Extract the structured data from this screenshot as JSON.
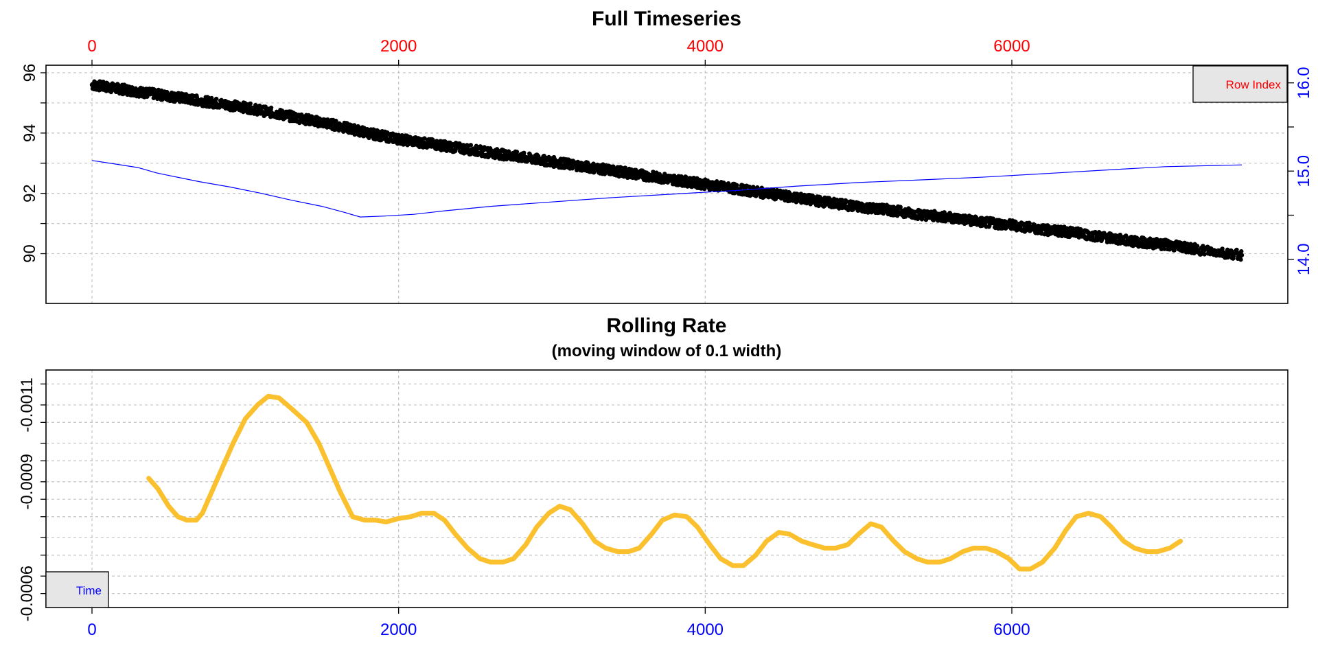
{
  "chart_data": [
    {
      "type": "scatter",
      "title": "Full Timeseries",
      "x_top_axis": {
        "ticks": [
          0,
          2000,
          4000,
          6000
        ],
        "color": "#ff0000",
        "range": [
          -300,
          7800
        ]
      },
      "y_left_axis": {
        "ticks": [
          90,
          92,
          94,
          96
        ],
        "range": [
          88.35,
          96.25
        ],
        "grid": [
          90,
          91,
          92,
          93,
          94,
          95,
          96
        ]
      },
      "y_right_axis": {
        "ticks": [
          "14.0",
          "15.0",
          "16.0"
        ],
        "minor_ticks": [
          14.5,
          15.5
        ],
        "color": "#0000ff",
        "range": [
          13.5,
          16.2
        ]
      },
      "legend": {
        "label": "Row Index",
        "color": "#ff0000",
        "position": "top-right"
      },
      "series": [
        {
          "kind": "points",
          "color": "#000000",
          "axis": "left",
          "x": [
            0,
            200,
            400,
            600,
            800,
            1000,
            1200,
            1400,
            1600,
            1800,
            2000,
            2200,
            2400,
            2600,
            2800,
            3000,
            3200,
            3400,
            3600,
            3800,
            4000,
            4200,
            4400,
            4600,
            4800,
            5000,
            5200,
            5400,
            5600,
            5800,
            6000,
            6200,
            6400,
            6600,
            6800,
            7000,
            7200,
            7500
          ],
          "y": [
            95.6,
            95.45,
            95.3,
            95.15,
            95.0,
            94.85,
            94.65,
            94.45,
            94.25,
            94.0,
            93.8,
            93.65,
            93.5,
            93.35,
            93.2,
            93.05,
            92.9,
            92.75,
            92.6,
            92.45,
            92.3,
            92.15,
            92.0,
            91.85,
            91.7,
            91.55,
            91.45,
            91.3,
            91.2,
            91.05,
            90.95,
            90.8,
            90.7,
            90.55,
            90.4,
            90.3,
            90.15,
            89.95
          ]
        },
        {
          "kind": "line",
          "color": "#0000ff",
          "axis": "right",
          "x": [
            0,
            150,
            300,
            420,
            500,
            700,
            900,
            1100,
            1300,
            1500,
            1650,
            1750,
            1900,
            2100,
            2300,
            2600,
            3000,
            3400,
            3800,
            4200,
            4600,
            5000,
            5400,
            5800,
            6200,
            6600,
            7000,
            7500
          ],
          "y": [
            15.12,
            15.08,
            15.04,
            14.98,
            14.95,
            14.88,
            14.82,
            14.75,
            14.67,
            14.6,
            14.53,
            14.48,
            14.49,
            14.51,
            14.55,
            14.6,
            14.65,
            14.7,
            14.74,
            14.78,
            14.83,
            14.87,
            14.9,
            14.93,
            14.97,
            15.01,
            15.05,
            15.07
          ]
        }
      ]
    },
    {
      "type": "line",
      "title": "Rolling Rate",
      "subtitle": "(moving window of 0.1 width)",
      "x_axis": {
        "ticks": [
          0,
          2000,
          4000,
          6000
        ],
        "color": "#0000ff",
        "range": [
          -300,
          7800
        ]
      },
      "y_axis": {
        "ticks": [
          "-0.0006",
          "-0.0009",
          "-0.0011"
        ],
        "tick_values": [
          -0.00057,
          -0.00089,
          -0.00111
        ],
        "range": [
          -0.00053,
          -0.00121
        ],
        "grid": [
          -0.00057,
          -0.00062,
          -0.00068,
          -0.00073,
          -0.00079,
          -0.00084,
          -0.00089,
          -0.00095,
          -0.001,
          -0.00106,
          -0.00111,
          -0.00117
        ]
      },
      "legend": {
        "label": "Time",
        "color": "#0000ff",
        "position": "bottom-left"
      },
      "series": [
        {
          "color": "#fbc02d",
          "x": [
            370,
            430,
            500,
            560,
            620,
            680,
            720,
            780,
            850,
            920,
            1000,
            1080,
            1150,
            1220,
            1300,
            1400,
            1480,
            1550,
            1620,
            1700,
            1780,
            1850,
            1920,
            2000,
            2080,
            2150,
            2230,
            2300,
            2370,
            2450,
            2530,
            2600,
            2680,
            2750,
            2830,
            2900,
            2980,
            3050,
            3120,
            3200,
            3280,
            3350,
            3430,
            3500,
            3570,
            3650,
            3720,
            3800,
            3880,
            3950,
            4030,
            4100,
            4180,
            4250,
            4330,
            4400,
            4480,
            4550,
            4630,
            4700,
            4780,
            4850,
            4930,
            5000,
            5080,
            5150,
            5230,
            5300,
            5380,
            5450,
            5530,
            5600,
            5680,
            5750,
            5830,
            5900,
            5980,
            6050,
            6120,
            6200,
            6280,
            6350,
            6420,
            6500,
            6580,
            6650,
            6730,
            6800,
            6880,
            6950,
            7030,
            7100
          ],
          "y": [
            -0.0009,
            -0.00087,
            -0.00082,
            -0.00079,
            -0.00078,
            -0.00078,
            -0.0008,
            -0.00086,
            -0.00093,
            -0.001,
            -0.00107,
            -0.00111,
            -0.001135,
            -0.00113,
            -0.0011,
            -0.00106,
            -0.001,
            -0.00093,
            -0.00086,
            -0.00079,
            -0.00078,
            -0.00078,
            -0.000775,
            -0.000785,
            -0.00079,
            -0.0008,
            -0.0008,
            -0.00078,
            -0.00074,
            -0.0007,
            -0.00067,
            -0.00066,
            -0.00066,
            -0.00067,
            -0.00071,
            -0.00076,
            -0.0008,
            -0.00082,
            -0.00081,
            -0.00077,
            -0.00072,
            -0.0007,
            -0.00069,
            -0.00069,
            -0.0007,
            -0.00074,
            -0.00078,
            -0.000795,
            -0.00079,
            -0.00076,
            -0.00071,
            -0.00067,
            -0.00065,
            -0.00065,
            -0.00068,
            -0.00072,
            -0.000745,
            -0.00074,
            -0.00072,
            -0.00071,
            -0.0007,
            -0.0007,
            -0.00071,
            -0.00074,
            -0.00077,
            -0.00076,
            -0.00072,
            -0.00069,
            -0.00067,
            -0.00066,
            -0.00066,
            -0.00067,
            -0.00069,
            -0.0007,
            -0.0007,
            -0.00069,
            -0.00067,
            -0.00064,
            -0.00064,
            -0.00066,
            -0.0007,
            -0.00075,
            -0.00079,
            -0.0008,
            -0.00079,
            -0.00076,
            -0.00072,
            -0.0007,
            -0.00069,
            -0.00069,
            -0.0007,
            -0.00072
          ]
        }
      ]
    }
  ]
}
